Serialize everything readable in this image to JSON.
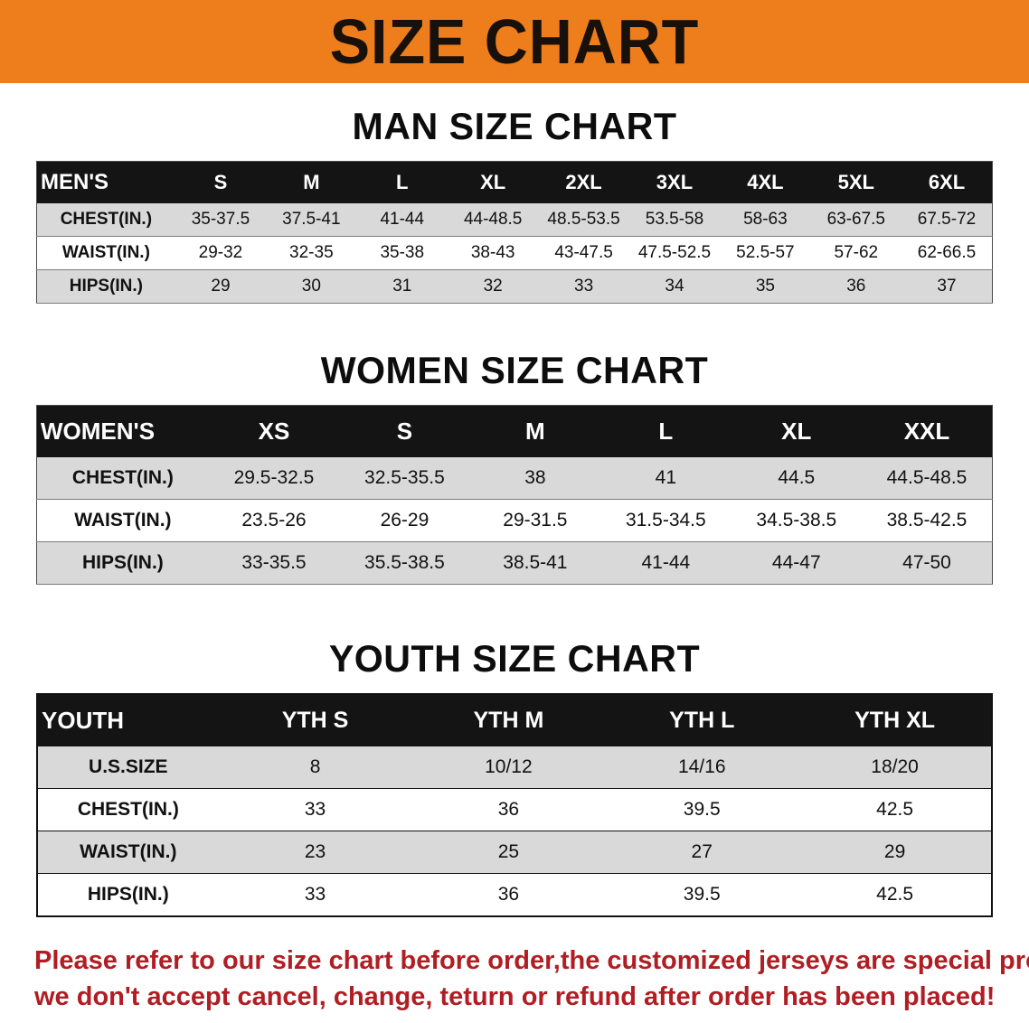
{
  "banner": {
    "title": "SIZE CHART"
  },
  "tables": [
    {
      "title": "MAN SIZE CHART",
      "header": [
        "MEN'S",
        "S",
        "M",
        "L",
        "XL",
        "2XL",
        "3XL",
        "4XL",
        "5XL",
        "6XL"
      ],
      "rows": [
        {
          "label": "CHEST(IN.)",
          "values": [
            "35-37.5",
            "37.5-41",
            "41-44",
            "44-48.5",
            "48.5-53.5",
            "53.5-58",
            "58-63",
            "63-67.5",
            "67.5-72"
          ]
        },
        {
          "label": "WAIST(IN.)",
          "values": [
            "29-32",
            "32-35",
            "35-38",
            "38-43",
            "43-47.5",
            "47.5-52.5",
            "52.5-57",
            "57-62",
            "62-66.5"
          ]
        },
        {
          "label": "HIPS(IN.)",
          "values": [
            "29",
            "30",
            "31",
            "32",
            "33",
            "34",
            "35",
            "36",
            "37"
          ]
        }
      ]
    },
    {
      "title": "WOMEN SIZE CHART",
      "header": [
        "WOMEN'S",
        "XS",
        "S",
        "M",
        "L",
        "XL",
        "XXL"
      ],
      "rows": [
        {
          "label": "CHEST(IN.)",
          "values": [
            "29.5-32.5",
            "32.5-35.5",
            "38",
            "41",
            "44.5",
            "44.5-48.5"
          ]
        },
        {
          "label": "WAIST(IN.)",
          "values": [
            "23.5-26",
            "26-29",
            "29-31.5",
            "31.5-34.5",
            "34.5-38.5",
            "38.5-42.5"
          ]
        },
        {
          "label": "HIPS(IN.)",
          "values": [
            "33-35.5",
            "35.5-38.5",
            "38.5-41",
            "41-44",
            "44-47",
            "47-50"
          ]
        }
      ]
    },
    {
      "title": "YOUTH SIZE CHART",
      "header": [
        "YOUTH",
        "YTH S",
        "YTH M",
        "YTH L",
        "YTH XL"
      ],
      "rows": [
        {
          "label": "U.S.SIZE",
          "values": [
            "8",
            "10/12",
            "14/16",
            "18/20"
          ]
        },
        {
          "label": "CHEST(IN.)",
          "values": [
            "33",
            "36",
            "39.5",
            "42.5"
          ]
        },
        {
          "label": "WAIST(IN.)",
          "values": [
            "23",
            "25",
            "27",
            "29"
          ]
        },
        {
          "label": "HIPS(IN.)",
          "values": [
            "33",
            "36",
            "39.5",
            "42.5"
          ]
        }
      ]
    }
  ],
  "footer": {
    "line1": "Please refer to our size chart before order,the customized jerseys are special products,",
    "line2": "we don't accept cancel, change, teturn or refund after order has been placed!"
  },
  "colors": {
    "banner_orange": "#ee7d1b",
    "header_black": "#141414",
    "row_gray": "#d9d9d9",
    "footer_red": "#b01e23"
  }
}
